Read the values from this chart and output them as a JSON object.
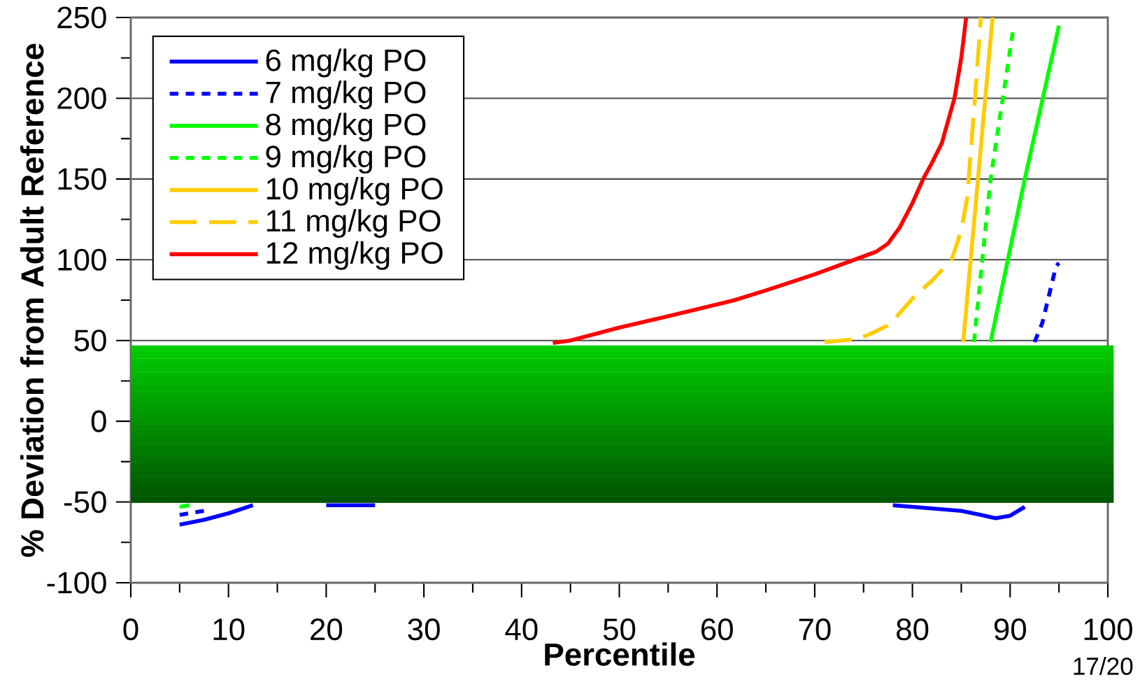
{
  "chart_data": {
    "type": "line",
    "xlabel": "Percentile",
    "ylabel": "% Deviation from Adult Reference",
    "xlim": [
      0,
      100
    ],
    "ylim": [
      -100,
      250
    ],
    "xticks": [
      0,
      10,
      20,
      30,
      40,
      50,
      60,
      70,
      80,
      90,
      100
    ],
    "yticks": [
      -100,
      -50,
      0,
      50,
      100,
      150,
      200,
      250
    ],
    "grid": "y",
    "legend": "top left",
    "marker": "none",
    "annotations": [
      "17/20"
    ],
    "series": [
      {
        "name": "6 mg/kg PO",
        "color": "#0000ff",
        "line_style": "solid",
        "x": [
          5,
          7.5,
          10,
          12.5,
          16,
          20,
          23,
          25,
          50,
          78,
          80,
          85,
          87,
          88.5,
          90,
          91.5
        ],
        "values": [
          -64,
          -61,
          -57,
          -52,
          null,
          -52,
          -52,
          -52,
          null,
          -52,
          -53,
          -55.5,
          -58,
          -60,
          -58.5,
          -53
        ]
      },
      {
        "name": "7 mg/kg PO",
        "color": "#0000ff",
        "line_style": "dotted",
        "x": [
          5,
          8,
          50,
          92.5,
          93.3,
          94.7,
          95
        ],
        "values": [
          -58,
          -55,
          null,
          49,
          61,
          96,
          98
        ]
      },
      {
        "name": "8 mg/kg PO",
        "color": "#00ff00",
        "line_style": "solid",
        "x": [
          5,
          6,
          50,
          88,
          91.5,
          95
        ],
        "values": [
          -53,
          -52,
          null,
          49,
          150,
          245
        ]
      },
      {
        "name": "9 mg/kg PO",
        "color": "#00ff00",
        "line_style": "dotted",
        "x": [
          86.3,
          88,
          90.3
        ],
        "values": [
          49,
          150,
          242
        ]
      },
      {
        "name": "10 mg/kg PO",
        "color": "#ffcc00",
        "line_style": "solid",
        "x": [
          85.2,
          88.2
        ],
        "values": [
          49,
          250
        ]
      },
      {
        "name": "11 mg/kg PO",
        "color": "#ffcc00",
        "line_style": "dashed",
        "x": [
          71,
          74.5,
          76,
          77.7,
          80.3,
          82,
          84,
          85,
          85.6,
          86.4,
          87
        ],
        "values": [
          49,
          51,
          55,
          60,
          78,
          87,
          100,
          118,
          138,
          200,
          250
        ]
      },
      {
        "name": "12 mg/kg PO",
        "color": "#ff0000",
        "line_style": "solid",
        "x": [
          43.2,
          45,
          50,
          55,
          61.8,
          65,
          70,
          76.3,
          77.5,
          78.7,
          80,
          81.1,
          82,
          83,
          84.3,
          85,
          85.5
        ],
        "values": [
          48.5,
          50,
          58,
          65,
          75,
          81,
          91,
          105,
          110,
          120,
          135,
          150,
          160,
          172,
          200,
          225,
          250
        ]
      }
    ]
  }
}
